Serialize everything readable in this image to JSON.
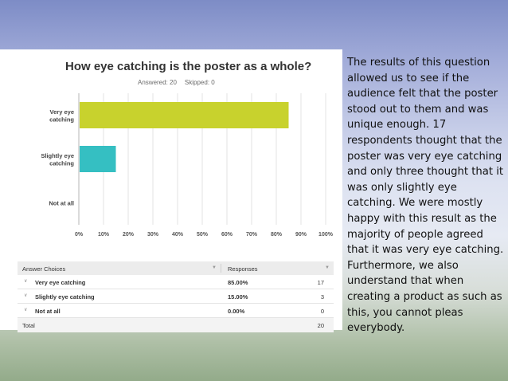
{
  "chart_data": {
    "type": "bar",
    "orientation": "horizontal",
    "title": "How eye catching is the poster as a whole?",
    "subtitle": {
      "answered": "Answered: 20",
      "skipped": "Skipped: 0"
    },
    "categories": [
      "Very eye catching",
      "Slightly eye catching",
      "Not at all"
    ],
    "category_lines": [
      [
        "Very eye",
        "catching"
      ],
      [
        "Slightly eye",
        "catching"
      ],
      [
        "Not at all"
      ]
    ],
    "values": [
      85,
      15,
      0
    ],
    "colors": [
      "#c8d22d",
      "#35bfc2",
      "#cccccc"
    ],
    "xticks": [
      "0%",
      "10%",
      "20%",
      "30%",
      "40%",
      "50%",
      "60%",
      "70%",
      "80%",
      "90%",
      "100%"
    ],
    "xlim": [
      0,
      100
    ],
    "grid": true
  },
  "table": {
    "headers": [
      "Answer Choices",
      "Responses"
    ],
    "rows": [
      {
        "choice": "Very eye catching",
        "percent": "85.00%",
        "count": "17"
      },
      {
        "choice": "Slightly eye catching",
        "percent": "15.00%",
        "count": "3"
      },
      {
        "choice": "Not at all",
        "percent": "0.00%",
        "count": "0"
      }
    ],
    "total_label": "Total",
    "total_count": "20"
  },
  "commentary": "The results of this question allowed us to see if the audience felt that the poster stood out to them and was unique enough. 17 respondents thought that the poster was very eye catching and only three thought that it was only slightly eye catching. We were mostly happy with this result as the majority of people agreed that it was very eye catching. Furthermore, we also understand that when creating a product as such as this, you cannot pleas everybody."
}
